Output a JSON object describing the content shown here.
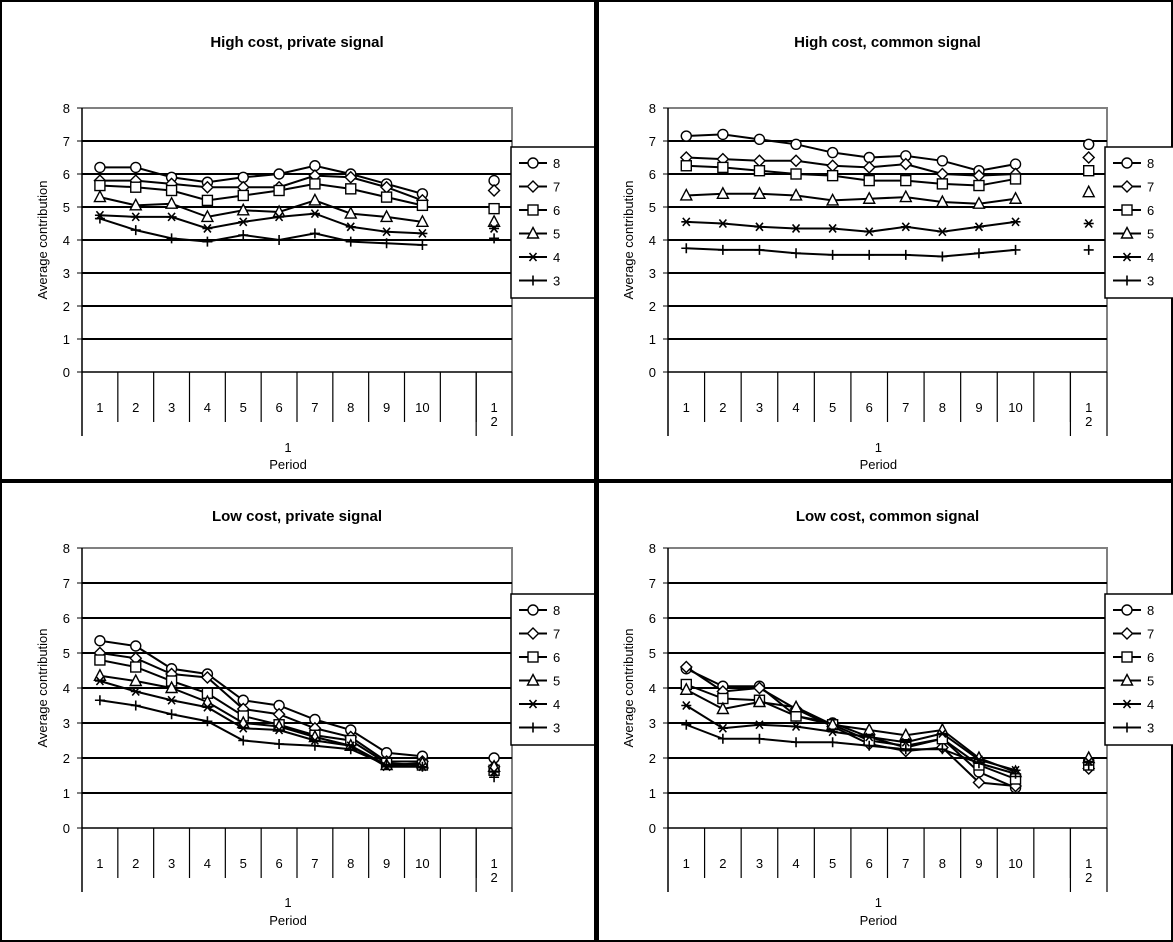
{
  "chart_data": [
    {
      "type": "line",
      "title": "High cost, private signal",
      "xlabel": "Period",
      "ylabel": "Average contribution",
      "ylim": [
        0,
        8
      ],
      "yticks": [
        "0",
        "1",
        "2",
        "3",
        "4",
        "5",
        "6",
        "7",
        "8"
      ],
      "grid": true,
      "legend_position": "right",
      "x_group1_label": "1",
      "x_group2_label": "2",
      "x_group1_ticks": [
        "1",
        "2",
        "3",
        "4",
        "5",
        "6",
        "7",
        "8",
        "9",
        "10"
      ],
      "x_group2_ticks": [
        "1"
      ],
      "series": [
        {
          "name": "8",
          "marker": "circle",
          "values": [
            6.2,
            6.2,
            5.9,
            5.75,
            5.9,
            6.0,
            6.25,
            6.0,
            5.7,
            5.4
          ],
          "part2": 5.8
        },
        {
          "name": "7",
          "marker": "diamond",
          "values": [
            5.8,
            5.8,
            5.7,
            5.6,
            5.6,
            5.6,
            5.95,
            5.9,
            5.6,
            5.2
          ],
          "part2": 5.5
        },
        {
          "name": "6",
          "marker": "square",
          "values": [
            5.65,
            5.6,
            5.5,
            5.2,
            5.35,
            5.5,
            5.7,
            5.55,
            5.3,
            5.05
          ],
          "part2": 4.95
        },
        {
          "name": "5",
          "marker": "triangle",
          "values": [
            5.3,
            5.05,
            5.1,
            4.7,
            4.9,
            4.85,
            5.2,
            4.8,
            4.7,
            4.55
          ],
          "part2": 4.55
        },
        {
          "name": "4",
          "marker": "asterisk",
          "values": [
            4.75,
            4.7,
            4.7,
            4.35,
            4.55,
            4.7,
            4.8,
            4.4,
            4.25,
            4.2
          ],
          "part2": 4.35
        },
        {
          "name": "3",
          "marker": "plus",
          "values": [
            4.65,
            4.3,
            4.05,
            3.95,
            4.15,
            4.0,
            4.2,
            3.95,
            3.9,
            3.85
          ],
          "part2": 4.05
        }
      ]
    },
    {
      "type": "line",
      "title": "High cost, common signal",
      "xlabel": "Period",
      "ylabel": "Average contribution",
      "ylim": [
        0,
        8
      ],
      "yticks": [
        "0",
        "1",
        "2",
        "3",
        "4",
        "5",
        "6",
        "7",
        "8"
      ],
      "grid": true,
      "legend_position": "right",
      "x_group1_label": "1",
      "x_group2_label": "2",
      "x_group1_ticks": [
        "1",
        "2",
        "3",
        "4",
        "5",
        "6",
        "7",
        "8",
        "9",
        "10"
      ],
      "x_group2_ticks": [
        "1"
      ],
      "series": [
        {
          "name": "8",
          "marker": "circle",
          "values": [
            7.15,
            7.2,
            7.05,
            6.9,
            6.65,
            6.5,
            6.55,
            6.4,
            6.1,
            6.3
          ],
          "part2": 6.9
        },
        {
          "name": "7",
          "marker": "diamond",
          "values": [
            6.5,
            6.45,
            6.4,
            6.4,
            6.25,
            6.2,
            6.3,
            6.0,
            5.95,
            6.0
          ],
          "part2": 6.5
        },
        {
          "name": "6",
          "marker": "square",
          "values": [
            6.25,
            6.2,
            6.1,
            6.0,
            5.95,
            5.8,
            5.8,
            5.7,
            5.65,
            5.85
          ],
          "part2": 6.1
        },
        {
          "name": "5",
          "marker": "triangle",
          "values": [
            5.35,
            5.4,
            5.4,
            5.35,
            5.2,
            5.25,
            5.3,
            5.15,
            5.1,
            5.25
          ],
          "part2": 5.45
        },
        {
          "name": "4",
          "marker": "asterisk",
          "values": [
            4.55,
            4.5,
            4.4,
            4.35,
            4.35,
            4.25,
            4.4,
            4.25,
            4.4,
            4.55
          ],
          "part2": 4.5
        },
        {
          "name": "3",
          "marker": "plus",
          "values": [
            3.75,
            3.7,
            3.7,
            3.6,
            3.55,
            3.55,
            3.55,
            3.5,
            3.6,
            3.7
          ],
          "part2": 3.7
        }
      ]
    },
    {
      "type": "line",
      "title": "Low cost, private signal",
      "xlabel": "Period",
      "ylabel": "Average contribution",
      "ylim": [
        0,
        8
      ],
      "yticks": [
        "0",
        "1",
        "2",
        "3",
        "4",
        "5",
        "6",
        "7",
        "8"
      ],
      "grid": true,
      "legend_position": "right",
      "x_group1_label": "1",
      "x_group2_label": "2",
      "x_group1_ticks": [
        "1",
        "2",
        "3",
        "4",
        "5",
        "6",
        "7",
        "8",
        "9",
        "10"
      ],
      "x_group2_ticks": [
        "1"
      ],
      "series": [
        {
          "name": "8",
          "marker": "circle",
          "values": [
            5.35,
            5.2,
            4.55,
            4.4,
            3.65,
            3.5,
            3.1,
            2.8,
            2.15,
            2.05
          ],
          "part2": 2.0
        },
        {
          "name": "7",
          "marker": "diamond",
          "values": [
            5.0,
            4.85,
            4.4,
            4.3,
            3.4,
            3.25,
            2.85,
            2.6,
            1.9,
            1.9
          ],
          "part2": 1.75
        },
        {
          "name": "6",
          "marker": "square",
          "values": [
            4.8,
            4.6,
            4.2,
            3.85,
            3.2,
            2.95,
            2.65,
            2.5,
            1.85,
            1.8
          ],
          "part2": 1.65
        },
        {
          "name": "5",
          "marker": "triangle",
          "values": [
            4.35,
            4.2,
            4.0,
            3.6,
            3.0,
            2.9,
            2.6,
            2.35,
            1.8,
            1.85
          ],
          "part2": 1.75
        },
        {
          "name": "4",
          "marker": "asterisk",
          "values": [
            4.2,
            3.9,
            3.65,
            3.45,
            2.85,
            2.8,
            2.5,
            2.35,
            1.75,
            1.75
          ],
          "part2": 1.6
        },
        {
          "name": "3",
          "marker": "plus",
          "values": [
            3.65,
            3.5,
            3.25,
            3.05,
            2.5,
            2.4,
            2.35,
            2.25,
            1.8,
            1.75
          ],
          "part2": 1.45
        }
      ]
    },
    {
      "type": "line",
      "title": "Low cost, common signal",
      "xlabel": "Period",
      "ylabel": "Average contribution",
      "ylim": [
        0,
        8
      ],
      "yticks": [
        "0",
        "1",
        "2",
        "3",
        "4",
        "5",
        "6",
        "7",
        "8"
      ],
      "grid": true,
      "legend_position": "right",
      "x_group1_label": "1",
      "x_group2_label": "2",
      "x_group1_ticks": [
        "1",
        "2",
        "3",
        "4",
        "5",
        "6",
        "7",
        "8",
        "9",
        "10"
      ],
      "x_group2_ticks": [
        "1"
      ],
      "series": [
        {
          "name": "8",
          "marker": "circle",
          "values": [
            4.55,
            4.05,
            4.05,
            3.2,
            3.0,
            2.6,
            2.3,
            2.55,
            1.6,
            1.15
          ],
          "part2": 1.9
        },
        {
          "name": "7",
          "marker": "diamond",
          "values": [
            4.6,
            3.9,
            4.0,
            3.4,
            2.9,
            2.4,
            2.2,
            2.3,
            1.3,
            1.2
          ],
          "part2": 1.7
        },
        {
          "name": "6",
          "marker": "square",
          "values": [
            4.1,
            3.7,
            3.65,
            3.2,
            2.95,
            2.5,
            2.35,
            2.55,
            1.8,
            1.4
          ],
          "part2": 1.8
        },
        {
          "name": "5",
          "marker": "triangle",
          "values": [
            3.95,
            3.4,
            3.6,
            3.45,
            2.95,
            2.8,
            2.65,
            2.8,
            2.0,
            1.6
          ],
          "part2": 2.0
        },
        {
          "name": "4",
          "marker": "asterisk",
          "values": [
            3.5,
            2.85,
            2.95,
            2.9,
            2.75,
            2.6,
            2.45,
            2.7,
            1.95,
            1.65
          ],
          "part2": 1.9
        },
        {
          "name": "3",
          "marker": "plus",
          "values": [
            2.95,
            2.55,
            2.55,
            2.45,
            2.45,
            2.35,
            2.25,
            2.25,
            1.85,
            1.55
          ],
          "part2": 1.8
        }
      ]
    }
  ]
}
